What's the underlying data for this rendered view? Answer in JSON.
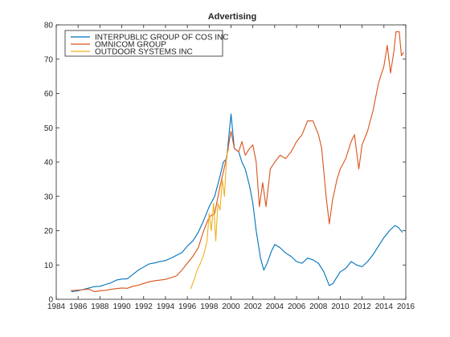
{
  "chart_data": {
    "type": "line",
    "title": "Advertising",
    "xlabel": "",
    "ylabel": "",
    "xlim": [
      1984,
      2016
    ],
    "ylim": [
      0,
      80
    ],
    "xticks": [
      "1984",
      "1986",
      "1988",
      "1990",
      "1992",
      "1994",
      "1996",
      "1998",
      "2000",
      "2002",
      "2004",
      "2006",
      "2008",
      "2010",
      "2012",
      "2014",
      "2016"
    ],
    "yticks": [
      "0",
      "10",
      "20",
      "30",
      "40",
      "50",
      "60",
      "70",
      "80"
    ],
    "grid": false,
    "legend_position": "top-left",
    "series": [
      {
        "name": "INTERPUBLIC GROUP OF COS INC",
        "color": "#0072BD",
        "points": [
          [
            1985.4,
            2.2
          ],
          [
            1986.0,
            2.5
          ],
          [
            1986.5,
            2.9
          ],
          [
            1987.0,
            3.3
          ],
          [
            1987.5,
            3.7
          ],
          [
            1988.0,
            3.8
          ],
          [
            1988.5,
            4.3
          ],
          [
            1989.0,
            4.8
          ],
          [
            1989.5,
            5.6
          ],
          [
            1990.0,
            5.9
          ],
          [
            1990.5,
            6.0
          ],
          [
            1991.0,
            7.2
          ],
          [
            1991.5,
            8.5
          ],
          [
            1992.0,
            9.4
          ],
          [
            1992.5,
            10.3
          ],
          [
            1993.0,
            10.6
          ],
          [
            1993.5,
            11.0
          ],
          [
            1994.0,
            11.3
          ],
          [
            1994.5,
            12.0
          ],
          [
            1995.0,
            12.8
          ],
          [
            1995.5,
            13.6
          ],
          [
            1996.0,
            15.5
          ],
          [
            1996.5,
            17.0
          ],
          [
            1997.0,
            19.5
          ],
          [
            1997.5,
            23.0
          ],
          [
            1998.0,
            27.0
          ],
          [
            1998.5,
            30.0
          ],
          [
            1999.0,
            36.0
          ],
          [
            1999.3,
            40.0
          ],
          [
            1999.6,
            41.0
          ],
          [
            2000.0,
            54.0
          ],
          [
            2000.3,
            44.0
          ],
          [
            2000.7,
            43.0
          ],
          [
            2001.0,
            40.0
          ],
          [
            2001.3,
            38.0
          ],
          [
            2001.7,
            33.0
          ],
          [
            2002.0,
            28.0
          ],
          [
            2002.3,
            20.0
          ],
          [
            2002.7,
            12.0
          ],
          [
            2003.0,
            8.5
          ],
          [
            2003.3,
            10.5
          ],
          [
            2003.7,
            14.0
          ],
          [
            2004.0,
            16.0
          ],
          [
            2004.5,
            15.0
          ],
          [
            2005.0,
            13.5
          ],
          [
            2005.5,
            12.5
          ],
          [
            2006.0,
            11.0
          ],
          [
            2006.5,
            10.5
          ],
          [
            2007.0,
            12.0
          ],
          [
            2007.5,
            11.5
          ],
          [
            2008.0,
            10.5
          ],
          [
            2008.5,
            8.0
          ],
          [
            2009.0,
            4.0
          ],
          [
            2009.3,
            4.5
          ],
          [
            2009.7,
            6.5
          ],
          [
            2010.0,
            8.0
          ],
          [
            2010.5,
            9.0
          ],
          [
            2011.0,
            11.0
          ],
          [
            2011.5,
            10.0
          ],
          [
            2012.0,
            9.5
          ],
          [
            2012.5,
            11.0
          ],
          [
            2013.0,
            13.0
          ],
          [
            2013.5,
            15.5
          ],
          [
            2014.0,
            18.0
          ],
          [
            2014.5,
            20.0
          ],
          [
            2015.0,
            21.5
          ],
          [
            2015.3,
            21.0
          ],
          [
            2015.7,
            19.5
          ]
        ]
      },
      {
        "name": "OMNICOM GROUP",
        "color": "#D95319",
        "points": [
          [
            1985.3,
            2.5
          ],
          [
            1986.0,
            2.7
          ],
          [
            1986.5,
            2.8
          ],
          [
            1987.0,
            3.0
          ],
          [
            1987.5,
            2.2
          ],
          [
            1988.0,
            2.5
          ],
          [
            1988.5,
            2.6
          ],
          [
            1989.0,
            2.9
          ],
          [
            1989.5,
            3.1
          ],
          [
            1990.0,
            3.3
          ],
          [
            1990.5,
            3.2
          ],
          [
            1991.0,
            3.8
          ],
          [
            1991.5,
            4.1
          ],
          [
            1992.0,
            4.6
          ],
          [
            1992.5,
            5.1
          ],
          [
            1993.0,
            5.4
          ],
          [
            1993.5,
            5.6
          ],
          [
            1994.0,
            5.8
          ],
          [
            1994.5,
            6.3
          ],
          [
            1995.0,
            6.8
          ],
          [
            1995.5,
            8.5
          ],
          [
            1996.0,
            10.5
          ],
          [
            1996.5,
            12.5
          ],
          [
            1997.0,
            15.0
          ],
          [
            1997.5,
            20.0
          ],
          [
            1998.0,
            24.0
          ],
          [
            1998.5,
            25.0
          ],
          [
            1999.0,
            33.0
          ],
          [
            1999.5,
            40.0
          ],
          [
            2000.0,
            49.0
          ],
          [
            2000.3,
            44.0
          ],
          [
            2000.7,
            43.0
          ],
          [
            2001.0,
            46.0
          ],
          [
            2001.3,
            42.0
          ],
          [
            2001.7,
            44.0
          ],
          [
            2002.0,
            45.0
          ],
          [
            2002.3,
            40.0
          ],
          [
            2002.6,
            27.0
          ],
          [
            2002.9,
            34.0
          ],
          [
            2003.2,
            27.0
          ],
          [
            2003.6,
            38.0
          ],
          [
            2004.0,
            40.0
          ],
          [
            2004.5,
            42.0
          ],
          [
            2005.0,
            41.0
          ],
          [
            2005.5,
            43.0
          ],
          [
            2006.0,
            46.0
          ],
          [
            2006.5,
            48.0
          ],
          [
            2007.0,
            52.0
          ],
          [
            2007.5,
            52.0
          ],
          [
            2008.0,
            48.0
          ],
          [
            2008.3,
            44.0
          ],
          [
            2008.7,
            30.0
          ],
          [
            2009.0,
            22.0
          ],
          [
            2009.3,
            29.0
          ],
          [
            2009.7,
            35.0
          ],
          [
            2010.0,
            38.0
          ],
          [
            2010.5,
            41.0
          ],
          [
            2011.0,
            46.0
          ],
          [
            2011.3,
            48.0
          ],
          [
            2011.7,
            38.0
          ],
          [
            2012.0,
            45.0
          ],
          [
            2012.5,
            49.0
          ],
          [
            2013.0,
            55.0
          ],
          [
            2013.5,
            63.0
          ],
          [
            2014.0,
            68.0
          ],
          [
            2014.3,
            74.0
          ],
          [
            2014.6,
            66.0
          ],
          [
            2014.9,
            72.0
          ],
          [
            2015.1,
            78.0
          ],
          [
            2015.4,
            78.0
          ],
          [
            2015.6,
            71.0
          ],
          [
            2015.8,
            72.0
          ]
        ]
      },
      {
        "name": "OUTDOOR SYSTEMS INC",
        "color": "#EDB120",
        "points": [
          [
            1996.3,
            3.0
          ],
          [
            1996.6,
            5.5
          ],
          [
            1996.9,
            8.5
          ],
          [
            1997.2,
            10.5
          ],
          [
            1997.5,
            13.0
          ],
          [
            1997.8,
            17.0
          ],
          [
            1998.0,
            25.0
          ],
          [
            1998.2,
            20.0
          ],
          [
            1998.4,
            28.0
          ],
          [
            1998.6,
            17.0
          ],
          [
            1998.8,
            28.0
          ],
          [
            1999.0,
            26.0
          ],
          [
            1999.2,
            35.0
          ],
          [
            1999.4,
            30.0
          ],
          [
            1999.6,
            42.0
          ],
          [
            1999.8,
            44.0
          ]
        ]
      }
    ]
  }
}
